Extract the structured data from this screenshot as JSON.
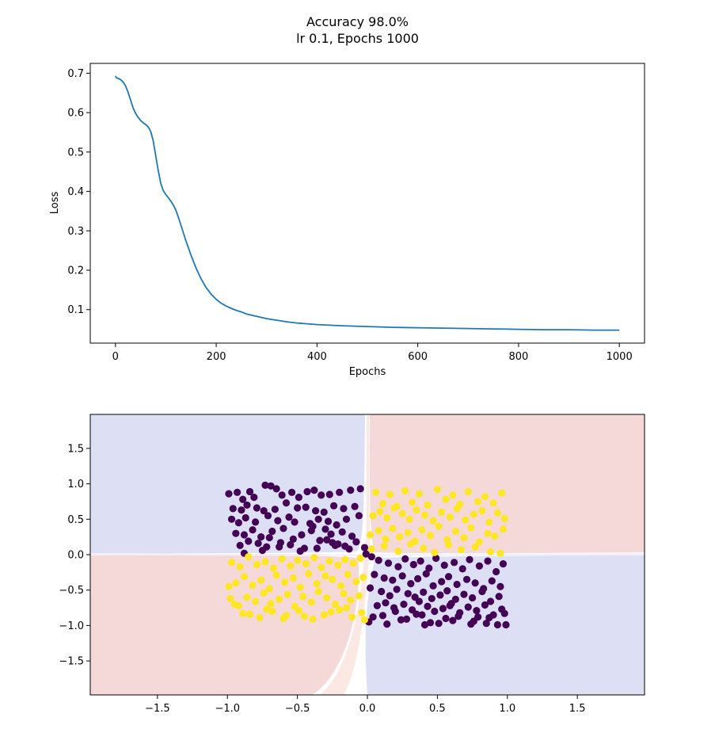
{
  "figure": {
    "title_line1": "Accuracy 98.0%",
    "title_line2": "lr 0.1, Epochs 1000"
  },
  "colors": {
    "loss_line": "#1f77b4",
    "class0_points": "#440154",
    "class1_points": "#fde725",
    "region_blue": "#dde0f5",
    "region_red": "#f5d9d8",
    "frame": "#000000"
  },
  "chart_data": [
    {
      "type": "line",
      "title": "",
      "xlabel": "Epochs",
      "ylabel": "Loss",
      "xlim": [
        -50,
        1050
      ],
      "ylim": [
        0.015,
        0.725
      ],
      "xticks": [
        0,
        200,
        400,
        600,
        800,
        1000
      ],
      "xtick_labels": [
        "0",
        "200",
        "400",
        "600",
        "800",
        "1000"
      ],
      "yticks": [
        0.1,
        0.2,
        0.3,
        0.4,
        0.5,
        0.6,
        0.7
      ],
      "ytick_labels": [
        "0.1",
        "0.2",
        "0.3",
        "0.4",
        "0.5",
        "0.6",
        "0.7"
      ],
      "grid": false,
      "series": [
        {
          "x": [
            0,
            2,
            5,
            10,
            15,
            20,
            25,
            30,
            35,
            40,
            45,
            50,
            55,
            60,
            65,
            70,
            75,
            80,
            85,
            90,
            95,
            100,
            105,
            110,
            115,
            120,
            125,
            130,
            140,
            150,
            160,
            170,
            180,
            190,
            200,
            210,
            220,
            230,
            240,
            250,
            260,
            280,
            300,
            320,
            340,
            360,
            380,
            400,
            450,
            500,
            550,
            600,
            650,
            700,
            750,
            800,
            850,
            900,
            950,
            1000
          ],
          "y": [
            0.693,
            0.688,
            0.687,
            0.684,
            0.678,
            0.668,
            0.652,
            0.632,
            0.612,
            0.598,
            0.588,
            0.58,
            0.574,
            0.57,
            0.564,
            0.552,
            0.528,
            0.49,
            0.452,
            0.42,
            0.402,
            0.392,
            0.384,
            0.375,
            0.365,
            0.352,
            0.334,
            0.314,
            0.274,
            0.238,
            0.205,
            0.178,
            0.156,
            0.139,
            0.126,
            0.116,
            0.109,
            0.103,
            0.098,
            0.094,
            0.089,
            0.083,
            0.077,
            0.073,
            0.069,
            0.066,
            0.064,
            0.062,
            0.059,
            0.057,
            0.055,
            0.054,
            0.053,
            0.052,
            0.051,
            0.05,
            0.049,
            0.049,
            0.048,
            0.048
          ]
        }
      ]
    },
    {
      "type": "scatter",
      "title": "",
      "xlabel": "",
      "ylabel": "",
      "xlim": [
        -1.98,
        1.98
      ],
      "ylim": [
        -1.98,
        1.98
      ],
      "xticks": [
        -1.5,
        -1.0,
        -0.5,
        0.0,
        0.5,
        1.0,
        1.5
      ],
      "xtick_labels": [
        "−1.5",
        "−1.0",
        "−0.5",
        "0.0",
        "0.5",
        "1.0",
        "1.5"
      ],
      "yticks": [
        -1.5,
        -1.0,
        -0.5,
        0.0,
        0.5,
        1.0,
        1.5
      ],
      "ytick_labels": [
        "−1.5",
        "−1.0",
        "−0.5",
        "0.0",
        "0.5",
        "1.0",
        "1.5"
      ],
      "grid": false,
      "decision_regions": {
        "top_left": "class0",
        "top_right": "class1",
        "bottom_left": "class1",
        "bottom_right": "class0",
        "boundary_x": 0.0,
        "boundary_y": 0.0
      },
      "series": [
        {
          "class": 0,
          "x": [
            -0.99,
            -0.93,
            -0.89,
            -0.84,
            -0.81,
            -0.73,
            -0.69,
            -0.65,
            -0.61,
            -0.54,
            -0.49,
            -0.43,
            -0.38,
            -0.33,
            -0.27,
            -0.2,
            -0.12,
            -0.05,
            -0.96,
            -0.9,
            -0.86,
            -0.79,
            -0.74,
            -0.66,
            -0.58,
            -0.5,
            -0.44,
            -0.37,
            -0.31,
            -0.24,
            -0.17,
            -0.09,
            -0.97,
            -0.92,
            -0.87,
            -0.8,
            -0.71,
            -0.64,
            -0.56,
            -0.52,
            -0.41,
            -0.35,
            -0.28,
            -0.22,
            -0.15,
            -0.06,
            -0.94,
            -0.88,
            -0.82,
            -0.76,
            -0.68,
            -0.6,
            -0.47,
            -0.4,
            -0.3,
            -0.26,
            -0.18,
            -0.11,
            -0.91,
            -0.85,
            -0.78,
            -0.72,
            -0.62,
            -0.55,
            -0.45,
            -0.34,
            -0.25,
            -0.16,
            -0.08,
            -0.02,
            -0.88,
            -0.75,
            -0.63,
            -0.48,
            -0.36,
            -0.21,
            -0.13,
            -0.01,
            -0.7,
            -0.53,
            -0.39,
            -0.29,
            -0.23,
            0.03,
            0.08,
            0.15,
            0.22,
            0.27,
            0.33,
            0.38,
            0.44,
            0.49,
            0.55,
            0.62,
            0.68,
            0.73,
            0.8,
            0.86,
            0.92,
            0.97,
            0.05,
            0.12,
            0.18,
            0.25,
            0.31,
            0.36,
            0.42,
            0.47,
            0.53,
            0.58,
            0.64,
            0.71,
            0.77,
            0.83,
            0.89,
            0.95,
            0.02,
            0.1,
            0.16,
            0.21,
            0.29,
            0.34,
            0.4,
            0.46,
            0.52,
            0.57,
            0.63,
            0.69,
            0.75,
            0.82,
            0.88,
            0.94,
            0.07,
            0.13,
            0.19,
            0.26,
            0.32,
            0.37,
            0.43,
            0.48,
            0.54,
            0.6,
            0.66,
            0.72,
            0.78,
            0.84,
            0.9,
            0.96,
            0.04,
            0.11,
            0.24,
            0.35,
            0.45,
            0.56,
            0.65,
            0.76,
            0.87,
            0.98,
            0.01,
            0.14,
            0.28,
            0.41,
            0.51,
            0.61,
            0.74,
            0.85,
            0.93,
            0.2,
            0.39,
            0.59,
            0.79,
            0.99
          ],
          "y": [
            0.86,
            0.88,
            0.78,
            0.89,
            0.81,
            0.98,
            0.97,
            0.93,
            0.84,
            0.88,
            0.81,
            0.89,
            0.91,
            0.84,
            0.85,
            0.88,
            0.91,
            0.93,
            0.65,
            0.63,
            0.7,
            0.66,
            0.62,
            0.64,
            0.73,
            0.66,
            0.67,
            0.62,
            0.6,
            0.69,
            0.65,
            0.68,
            0.5,
            0.45,
            0.52,
            0.46,
            0.55,
            0.48,
            0.53,
            0.46,
            0.44,
            0.5,
            0.47,
            0.42,
            0.5,
            0.55,
            0.3,
            0.28,
            0.35,
            0.25,
            0.33,
            0.37,
            0.28,
            0.34,
            0.36,
            0.29,
            0.32,
            0.26,
            0.13,
            0.19,
            0.16,
            0.11,
            0.17,
            0.14,
            0.09,
            0.2,
            0.17,
            0.12,
            0.18,
            0.1,
            0.02,
            0.06,
            0.11,
            0.05,
            0.09,
            0.15,
            0.08,
            0.01,
            0.24,
            0.22,
            0.4,
            0.21,
            0.13,
            -0.03,
            -0.08,
            -0.12,
            -0.17,
            -0.06,
            -0.14,
            -0.09,
            -0.19,
            -0.05,
            -0.15,
            -0.11,
            -0.2,
            -0.07,
            -0.16,
            -0.09,
            -0.24,
            -0.13,
            -0.28,
            -0.33,
            -0.36,
            -0.3,
            -0.41,
            -0.34,
            -0.27,
            -0.44,
            -0.38,
            -0.31,
            -0.42,
            -0.35,
            -0.4,
            -0.48,
            -0.37,
            -0.45,
            -0.47,
            -0.52,
            -0.58,
            -0.49,
            -0.55,
            -0.6,
            -0.53,
            -0.62,
            -0.57,
            -0.51,
            -0.63,
            -0.56,
            -0.61,
            -0.52,
            -0.66,
            -0.59,
            -0.72,
            -0.68,
            -0.75,
            -0.7,
            -0.78,
            -0.66,
            -0.73,
            -0.8,
            -0.76,
            -0.69,
            -0.82,
            -0.74,
            -0.79,
            -0.71,
            -0.85,
            -0.77,
            -0.88,
            -0.86,
            -0.92,
            -0.84,
            -0.96,
            -0.9,
            -0.87,
            -0.94,
            -0.89,
            -0.83,
            -0.95,
            -0.98,
            -0.91,
            -0.99,
            -0.97,
            -0.93,
            -0.98,
            -0.97,
            -0.99,
            -0.8,
            -0.85,
            -0.72,
            -0.88,
            -0.99
          ]
        },
        {
          "class": 1,
          "x": [
            0.06,
            0.11,
            0.16,
            0.21,
            0.27,
            0.32,
            0.37,
            0.43,
            0.5,
            0.56,
            0.61,
            0.66,
            0.72,
            0.79,
            0.84,
            0.9,
            0.96,
            0.04,
            0.09,
            0.14,
            0.19,
            0.25,
            0.3,
            0.35,
            0.41,
            0.47,
            0.53,
            0.59,
            0.64,
            0.7,
            0.76,
            0.82,
            0.87,
            0.93,
            0.98,
            0.02,
            0.08,
            0.13,
            0.18,
            0.23,
            0.29,
            0.34,
            0.39,
            0.45,
            0.51,
            0.57,
            0.63,
            0.69,
            0.74,
            0.8,
            0.86,
            0.91,
            0.97,
            0.03,
            0.12,
            0.22,
            0.31,
            0.4,
            0.48,
            0.58,
            0.67,
            0.77,
            0.88,
            0.95,
            -0.05,
            -0.1,
            -0.16,
            -0.21,
            -0.27,
            -0.33,
            -0.38,
            -0.44,
            -0.5,
            -0.55,
            -0.61,
            -0.67,
            -0.73,
            -0.79,
            -0.85,
            -0.91,
            -0.97,
            -0.03,
            -0.08,
            -0.14,
            -0.19,
            -0.25,
            -0.3,
            -0.36,
            -0.42,
            -0.48,
            -0.53,
            -0.59,
            -0.65,
            -0.7,
            -0.76,
            -0.82,
            -0.88,
            -0.94,
            -0.99,
            -0.06,
            -0.12,
            -0.17,
            -0.23,
            -0.29,
            -0.35,
            -0.4,
            -0.46,
            -0.52,
            -0.57,
            -0.63,
            -0.69,
            -0.74,
            -0.8,
            -0.86,
            -0.92,
            -0.98,
            -0.04,
            -0.11,
            -0.2,
            -0.31,
            -0.39,
            -0.49,
            -0.58,
            -0.68,
            -0.77,
            -0.89,
            -0.02,
            -0.15,
            -0.26,
            -0.45,
            -0.6,
            -0.72,
            -0.84,
            -0.95
          ],
          "y": [
            0.88,
            0.72,
            0.85,
            0.68,
            0.9,
            0.74,
            0.86,
            0.7,
            0.92,
            0.78,
            0.84,
            0.71,
            0.89,
            0.75,
            0.82,
            0.73,
            0.87,
            0.55,
            0.61,
            0.52,
            0.66,
            0.58,
            0.5,
            0.63,
            0.56,
            0.48,
            0.6,
            0.53,
            0.65,
            0.49,
            0.57,
            0.62,
            0.46,
            0.59,
            0.51,
            0.28,
            0.34,
            0.22,
            0.37,
            0.25,
            0.31,
            0.19,
            0.35,
            0.27,
            0.4,
            0.21,
            0.33,
            0.24,
            0.38,
            0.18,
            0.3,
            0.26,
            0.36,
            0.08,
            0.12,
            0.05,
            0.15,
            0.09,
            0.03,
            0.14,
            0.07,
            0.11,
            0.04,
            0.02,
            -0.05,
            -0.12,
            -0.07,
            -0.15,
            -0.09,
            -0.18,
            -0.04,
            -0.13,
            -0.08,
            -0.16,
            -0.06,
            -0.19,
            -0.1,
            -0.14,
            -0.03,
            -0.17,
            -0.11,
            -0.32,
            -0.38,
            -0.28,
            -0.44,
            -0.35,
            -0.3,
            -0.41,
            -0.27,
            -0.46,
            -0.33,
            -0.39,
            -0.29,
            -0.48,
            -0.36,
            -0.43,
            -0.31,
            -0.4,
            -0.45,
            -0.58,
            -0.64,
            -0.55,
            -0.7,
            -0.61,
            -0.52,
            -0.67,
            -0.59,
            -0.73,
            -0.56,
            -0.63,
            -0.69,
            -0.54,
            -0.66,
            -0.6,
            -0.72,
            -0.62,
            -0.82,
            -0.88,
            -0.78,
            -0.85,
            -0.91,
            -0.79,
            -0.86,
            -0.8,
            -0.89,
            -0.83,
            -0.92,
            -0.75,
            -0.81,
            -0.87,
            -0.9,
            -0.77,
            -0.84,
            -0.7
          ]
        }
      ]
    }
  ]
}
